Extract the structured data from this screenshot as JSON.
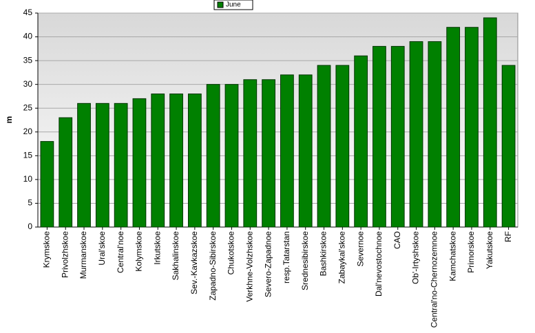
{
  "chart_data": {
    "type": "bar",
    "y_label": "m",
    "categories": [
      "Krymskoe",
      "Privolzhskoe",
      "Murmanskoe",
      "Ural'skoe",
      "Central'noe",
      "Kolymskoe",
      "Irkutskoe",
      "Sakhalinskoe",
      "Sev.-Kavkazskoe",
      "Zapadno-Sibirskoe",
      "Chukotskoe",
      "Verkhne-Volzhskoe",
      "Severo-Zapadnoe",
      "resp.Tatarstan",
      "Srednesibirskoe",
      "Bashkirskoe",
      "Zabaykal'skoe",
      "Severnoe",
      "Dal'nevostochnoe",
      "CAO",
      "Ob'-Irtyshskoe",
      "Central'no-Chernozemnoe",
      "Kamchatskoe",
      "Primorskoe",
      "Yakutskoe",
      "RF"
    ],
    "series": [
      {
        "name": "June",
        "color": "#008000",
        "values": [
          18,
          23,
          26,
          26,
          26,
          27,
          28,
          28,
          28,
          30,
          30,
          31,
          31,
          32,
          32,
          34,
          34,
          36,
          38,
          38,
          39,
          39,
          42,
          42,
          44,
          34
        ]
      }
    ],
    "ylim": [
      0,
      45
    ],
    "yticks": [
      0,
      5,
      10,
      15,
      20,
      25,
      30,
      35,
      40,
      45
    ],
    "grid": true,
    "legend": "top"
  }
}
